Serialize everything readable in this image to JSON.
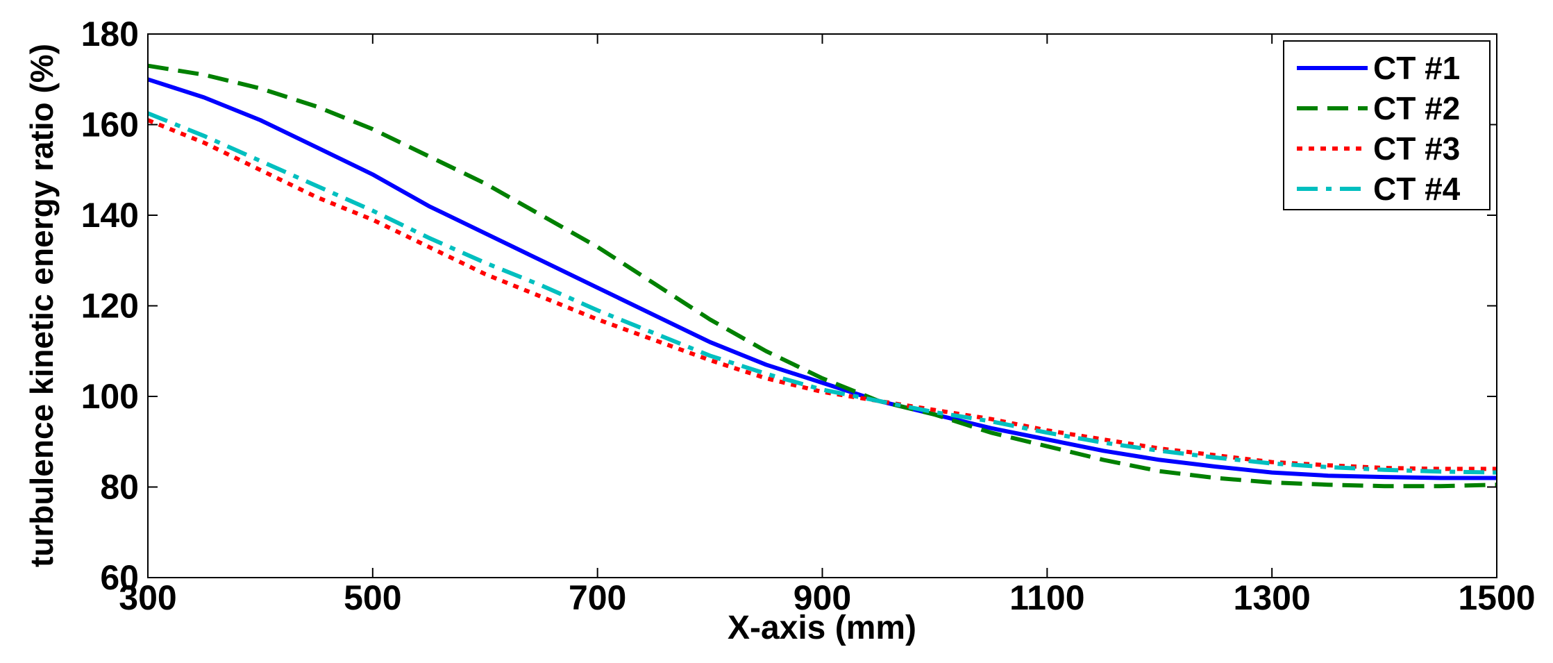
{
  "chart_data": {
    "type": "line",
    "title": "",
    "xlabel": "X-axis (mm)",
    "ylabel": "turbulence kinetic energy ratio (%)",
    "xlim": [
      300,
      1500
    ],
    "ylim": [
      60,
      180
    ],
    "xticks": [
      300,
      500,
      700,
      900,
      1100,
      1300,
      1500
    ],
    "yticks": [
      60,
      80,
      100,
      120,
      140,
      160,
      180
    ],
    "grid": false,
    "legend_position": "top-right",
    "x": [
      300,
      350,
      400,
      450,
      500,
      550,
      600,
      650,
      700,
      750,
      800,
      850,
      900,
      950,
      1000,
      1050,
      1100,
      1150,
      1200,
      1250,
      1300,
      1350,
      1400,
      1450,
      1500
    ],
    "series": [
      {
        "name": "CT #1",
        "color": "#0000ff",
        "style": "solid",
        "values": [
          170,
          166,
          161,
          155,
          149,
          142,
          136,
          130,
          124,
          118,
          112,
          107,
          103,
          99,
          96,
          93,
          90.5,
          88,
          86,
          84.5,
          83.2,
          82.5,
          82.2,
          82,
          82
        ]
      },
      {
        "name": "CT #2",
        "color": "#008000",
        "style": "dashed",
        "values": [
          173,
          171,
          168,
          164,
          159,
          153,
          147,
          140,
          133,
          125,
          117,
          110,
          104,
          99,
          96,
          92,
          89,
          86,
          83.5,
          82,
          81,
          80.5,
          80.2,
          80.2,
          80.5
        ]
      },
      {
        "name": "CT #3",
        "color": "#ff0000",
        "style": "dotted",
        "values": [
          161,
          156,
          150,
          144,
          139,
          133,
          127,
          122,
          117,
          112.5,
          108,
          104,
          101,
          99,
          97,
          95,
          92.5,
          90.5,
          88.5,
          87,
          85.5,
          84.8,
          84.2,
          84,
          84
        ]
      },
      {
        "name": "CT #4",
        "color": "#00bfbf",
        "style": "dash-dot",
        "values": [
          162.5,
          157.5,
          152,
          146.5,
          141,
          135,
          129.5,
          124.5,
          119,
          114,
          109,
          105,
          101.5,
          99,
          96.5,
          94.5,
          92,
          89.8,
          88,
          86.5,
          85.2,
          84.4,
          83.8,
          83.4,
          83.2
        ]
      }
    ]
  }
}
